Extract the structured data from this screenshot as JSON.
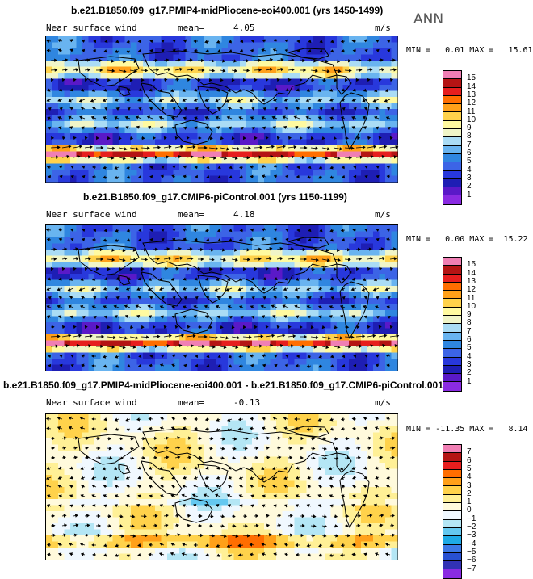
{
  "season": "ANN",
  "colors": {
    "speed": [
      "#8a2be2",
      "#5a19c8",
      "#1e1eb4",
      "#2838dc",
      "#3c64e6",
      "#2f86e0",
      "#69b4f0",
      "#aadcf5",
      "#f0f5c8",
      "#fffaa0",
      "#ffd24b",
      "#ffa019",
      "#ff6e00",
      "#e61e1e",
      "#b41414",
      "#f07fb4"
    ],
    "diff": [
      "#8a2be2",
      "#3232b4",
      "#2850d2",
      "#3c78e6",
      "#1eaae6",
      "#64c8f0",
      "#b4e6f5",
      "#f0f8ff",
      "#fffadc",
      "#fff096",
      "#ffd24b",
      "#ffa019",
      "#ff6e00",
      "#e61e1e",
      "#b41414",
      "#f07fb4"
    ]
  },
  "panels": [
    {
      "title": "b.e21.B1850.f09_g17.PMIP4-midPliocene-eoi400.001 (yrs 1450-1499)",
      "left_label": "Near surface wind",
      "mean_label": "mean=",
      "mean": "4.05",
      "units": "m/s",
      "min_label": "MIN =",
      "min": "0.01",
      "max_label": "MAX =",
      "max": "15.61",
      "kind": "speed",
      "ticks": [
        "15",
        "14",
        "13",
        "12",
        "11",
        "10",
        "9",
        "8",
        "7",
        "6",
        "5",
        "4",
        "3",
        "2",
        "1"
      ]
    },
    {
      "title": "b.e21.B1850.f09_g17.CMIP6-piControl.001 (yrs 1150-1199)",
      "left_label": "Near surface wind",
      "mean_label": "mean=",
      "mean": "4.18",
      "units": "m/s",
      "min_label": "MIN =",
      "min": "0.00",
      "max_label": "MAX =",
      "max": "15.22",
      "kind": "speed",
      "ticks": [
        "15",
        "14",
        "13",
        "12",
        "11",
        "10",
        "9",
        "8",
        "7",
        "6",
        "5",
        "4",
        "3",
        "2",
        "1"
      ]
    },
    {
      "title": "b.e21.B1850.f09_g17.PMIP4-midPliocene-eoi400.001 - b.e21.B1850.f09_g17.CMIP6-piControl.001",
      "left_label": "Near surface wind",
      "mean_label": "mean=",
      "mean": "-0.13",
      "units": "m/s",
      "min_label": "MIN =",
      "min": "-11.35",
      "max_label": "MAX =",
      "max": "8.14",
      "kind": "diff",
      "ticks": [
        "7",
        "6",
        "5",
        "4",
        "3",
        "2",
        "1",
        "0",
        "−1",
        "−2",
        "−3",
        "−4",
        "−5",
        "−6",
        "−7"
      ]
    }
  ]
}
